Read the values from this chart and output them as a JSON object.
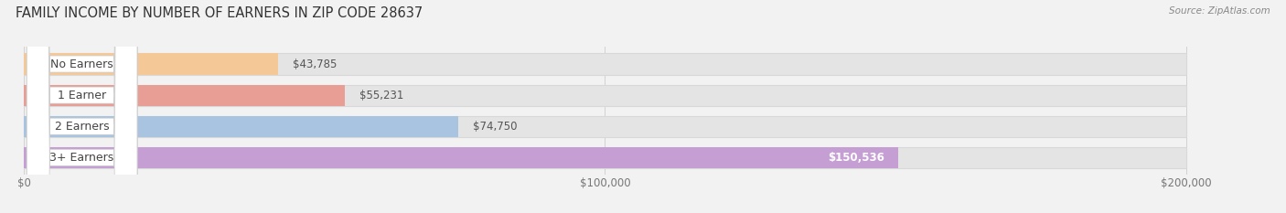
{
  "title": "FAMILY INCOME BY NUMBER OF EARNERS IN ZIP CODE 28637",
  "source": "Source: ZipAtlas.com",
  "categories": [
    "No Earners",
    "1 Earner",
    "2 Earners",
    "3+ Earners"
  ],
  "values": [
    43785,
    55231,
    74750,
    150536
  ],
  "bar_colors": [
    "#f5c898",
    "#e89e94",
    "#a8c4e0",
    "#c59fd4"
  ],
  "value_labels": [
    "$43,785",
    "$55,231",
    "$74,750",
    "$150,536"
  ],
  "value_label_inside": [
    false,
    false,
    false,
    true
  ],
  "xlim_min": 0,
  "xlim_max": 200000,
  "xticks": [
    0,
    100000,
    200000
  ],
  "xtick_labels": [
    "$0",
    "$100,000",
    "$200,000"
  ],
  "background_color": "#f2f2f2",
  "bar_background_color": "#e4e4e4",
  "bar_bg_outline_color": "#d8d8d8",
  "title_fontsize": 10.5,
  "tick_fontsize": 8.5,
  "label_fontsize": 9,
  "value_fontsize": 8.5,
  "bar_height": 0.68,
  "bar_spacing": 1.0
}
